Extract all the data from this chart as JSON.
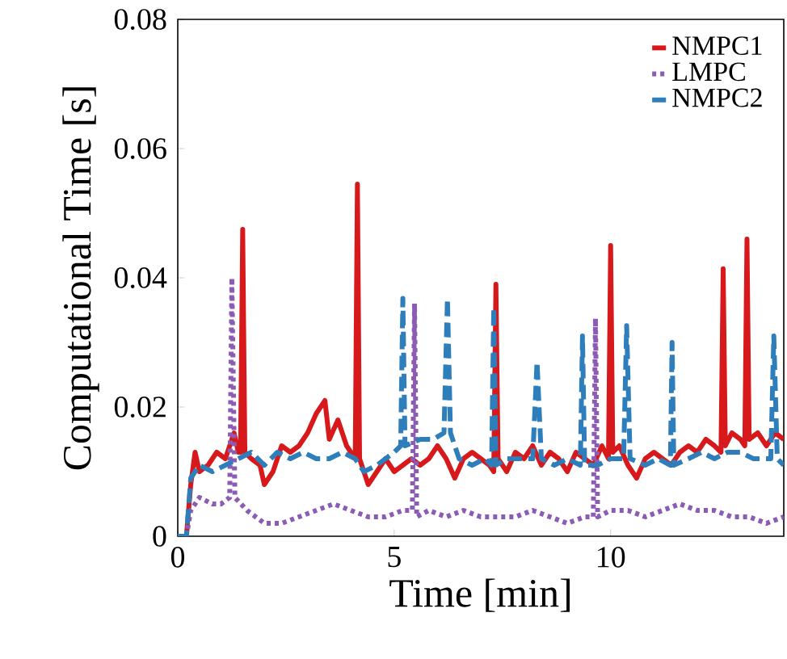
{
  "chart_data": {
    "type": "line",
    "xlabel": "Time [min]",
    "ylabel": "Computational Time [s]",
    "xlim": [
      0,
      14
    ],
    "ylim": [
      0,
      0.08
    ],
    "xticks": [
      0,
      5,
      10
    ],
    "yticks": [
      0,
      0.02,
      0.04,
      0.06,
      0.08
    ],
    "legend": "top right",
    "series": [
      {
        "name": "NMPC1",
        "color": "#d7191c",
        "line_style": "solid",
        "x": [
          0,
          0.2,
          0.3,
          0.4,
          0.5,
          0.7,
          0.9,
          1.1,
          1.3,
          1.4,
          1.45,
          1.5,
          1.55,
          1.7,
          1.9,
          2.0,
          2.2,
          2.4,
          2.6,
          2.8,
          3.0,
          3.2,
          3.4,
          3.5,
          3.7,
          3.9,
          4.1,
          4.15,
          4.2,
          4.4,
          4.6,
          4.8,
          5.0,
          5.2,
          5.4,
          5.6,
          5.8,
          6.0,
          6.2,
          6.4,
          6.6,
          6.8,
          7.0,
          7.2,
          7.3,
          7.35,
          7.4,
          7.6,
          7.8,
          8.0,
          8.2,
          8.4,
          8.6,
          8.8,
          9.0,
          9.2,
          9.4,
          9.6,
          9.8,
          9.95,
          10.0,
          10.05,
          10.2,
          10.4,
          10.6,
          10.8,
          11.0,
          11.2,
          11.4,
          11.6,
          11.8,
          12.0,
          12.2,
          12.4,
          12.55,
          12.6,
          12.65,
          12.8,
          13.0,
          13.1,
          13.15,
          13.2,
          13.4,
          13.6,
          13.8,
          14.0
        ],
        "values": [
          0,
          0,
          0.008,
          0.013,
          0.01,
          0.011,
          0.013,
          0.012,
          0.016,
          0.013,
          0.013,
          0.0475,
          0.013,
          0.012,
          0.011,
          0.008,
          0.01,
          0.014,
          0.013,
          0.014,
          0.016,
          0.019,
          0.021,
          0.015,
          0.018,
          0.014,
          0.012,
          0.0545,
          0.012,
          0.008,
          0.01,
          0.012,
          0.01,
          0.011,
          0.012,
          0.011,
          0.012,
          0.014,
          0.012,
          0.009,
          0.012,
          0.013,
          0.012,
          0.011,
          0.01,
          0.039,
          0.012,
          0.01,
          0.013,
          0.012,
          0.014,
          0.011,
          0.013,
          0.012,
          0.01,
          0.013,
          0.012,
          0.011,
          0.014,
          0.012,
          0.045,
          0.013,
          0.014,
          0.011,
          0.009,
          0.012,
          0.013,
          0.012,
          0.011,
          0.013,
          0.014,
          0.013,
          0.015,
          0.014,
          0.013,
          0.0414,
          0.014,
          0.016,
          0.015,
          0.014,
          0.046,
          0.015,
          0.016,
          0.014,
          0.016,
          0.015
        ]
      },
      {
        "name": "LMPC",
        "color": "#8c5cb5",
        "line_style": "dotted",
        "x": [
          0,
          0.2,
          0.3,
          0.5,
          0.8,
          1.0,
          1.2,
          1.25,
          1.32,
          1.6,
          2.0,
          2.4,
          2.8,
          3.2,
          3.6,
          4.0,
          4.4,
          4.8,
          5.2,
          5.42,
          5.47,
          5.52,
          5.8,
          6.2,
          6.6,
          7.0,
          7.4,
          7.8,
          8.2,
          8.6,
          9.0,
          9.4,
          9.6,
          9.65,
          9.7,
          10.0,
          10.4,
          10.8,
          11.2,
          11.6,
          12.0,
          12.4,
          12.8,
          13.2,
          13.6,
          14.0
        ],
        "values": [
          0,
          0,
          0.004,
          0.006,
          0.005,
          0.005,
          0.006,
          0.04,
          0.006,
          0.004,
          0.002,
          0.002,
          0.003,
          0.004,
          0.005,
          0.004,
          0.003,
          0.003,
          0.004,
          0.004,
          0.036,
          0.003,
          0.004,
          0.003,
          0.004,
          0.003,
          0.003,
          0.003,
          0.004,
          0.003,
          0.002,
          0.003,
          0.003,
          0.0337,
          0.003,
          0.004,
          0.004,
          0.003,
          0.004,
          0.005,
          0.004,
          0.004,
          0.003,
          0.003,
          0.002,
          0.003
        ]
      },
      {
        "name": "NMPC2",
        "color": "#2e7ebc",
        "line_style": "dashed",
        "x": [
          0,
          0.2,
          0.3,
          0.5,
          0.8,
          1.1,
          1.4,
          1.7,
          2.0,
          2.3,
          2.6,
          2.9,
          3.2,
          3.5,
          3.8,
          4.1,
          4.3,
          4.6,
          5.0,
          5.15,
          5.2,
          5.25,
          5.6,
          5.9,
          6.15,
          6.23,
          6.3,
          6.5,
          6.8,
          7.1,
          7.25,
          7.3,
          7.35,
          7.6,
          7.9,
          8.2,
          8.3,
          8.4,
          8.7,
          9.0,
          9.3,
          9.35,
          9.4,
          9.7,
          10.0,
          10.3,
          10.37,
          10.45,
          10.8,
          11.1,
          11.38,
          11.42,
          11.46,
          11.8,
          12.1,
          12.4,
          12.7,
          13.0,
          13.3,
          13.7,
          13.77,
          13.85,
          14.0
        ],
        "values": [
          0,
          0,
          0.009,
          0.011,
          0.01,
          0.011,
          0.012,
          0.013,
          0.011,
          0.013,
          0.012,
          0.013,
          0.012,
          0.012,
          0.013,
          0.012,
          0.01,
          0.011,
          0.013,
          0.014,
          0.0368,
          0.014,
          0.015,
          0.015,
          0.016,
          0.0368,
          0.016,
          0.012,
          0.011,
          0.012,
          0.011,
          0.0354,
          0.011,
          0.012,
          0.012,
          0.012,
          0.027,
          0.012,
          0.011,
          0.012,
          0.011,
          0.031,
          0.011,
          0.011,
          0.012,
          0.012,
          0.0326,
          0.012,
          0.011,
          0.012,
          0.011,
          0.03,
          0.011,
          0.012,
          0.013,
          0.012,
          0.013,
          0.013,
          0.012,
          0.012,
          0.031,
          0.012,
          0.011
        ]
      }
    ]
  }
}
